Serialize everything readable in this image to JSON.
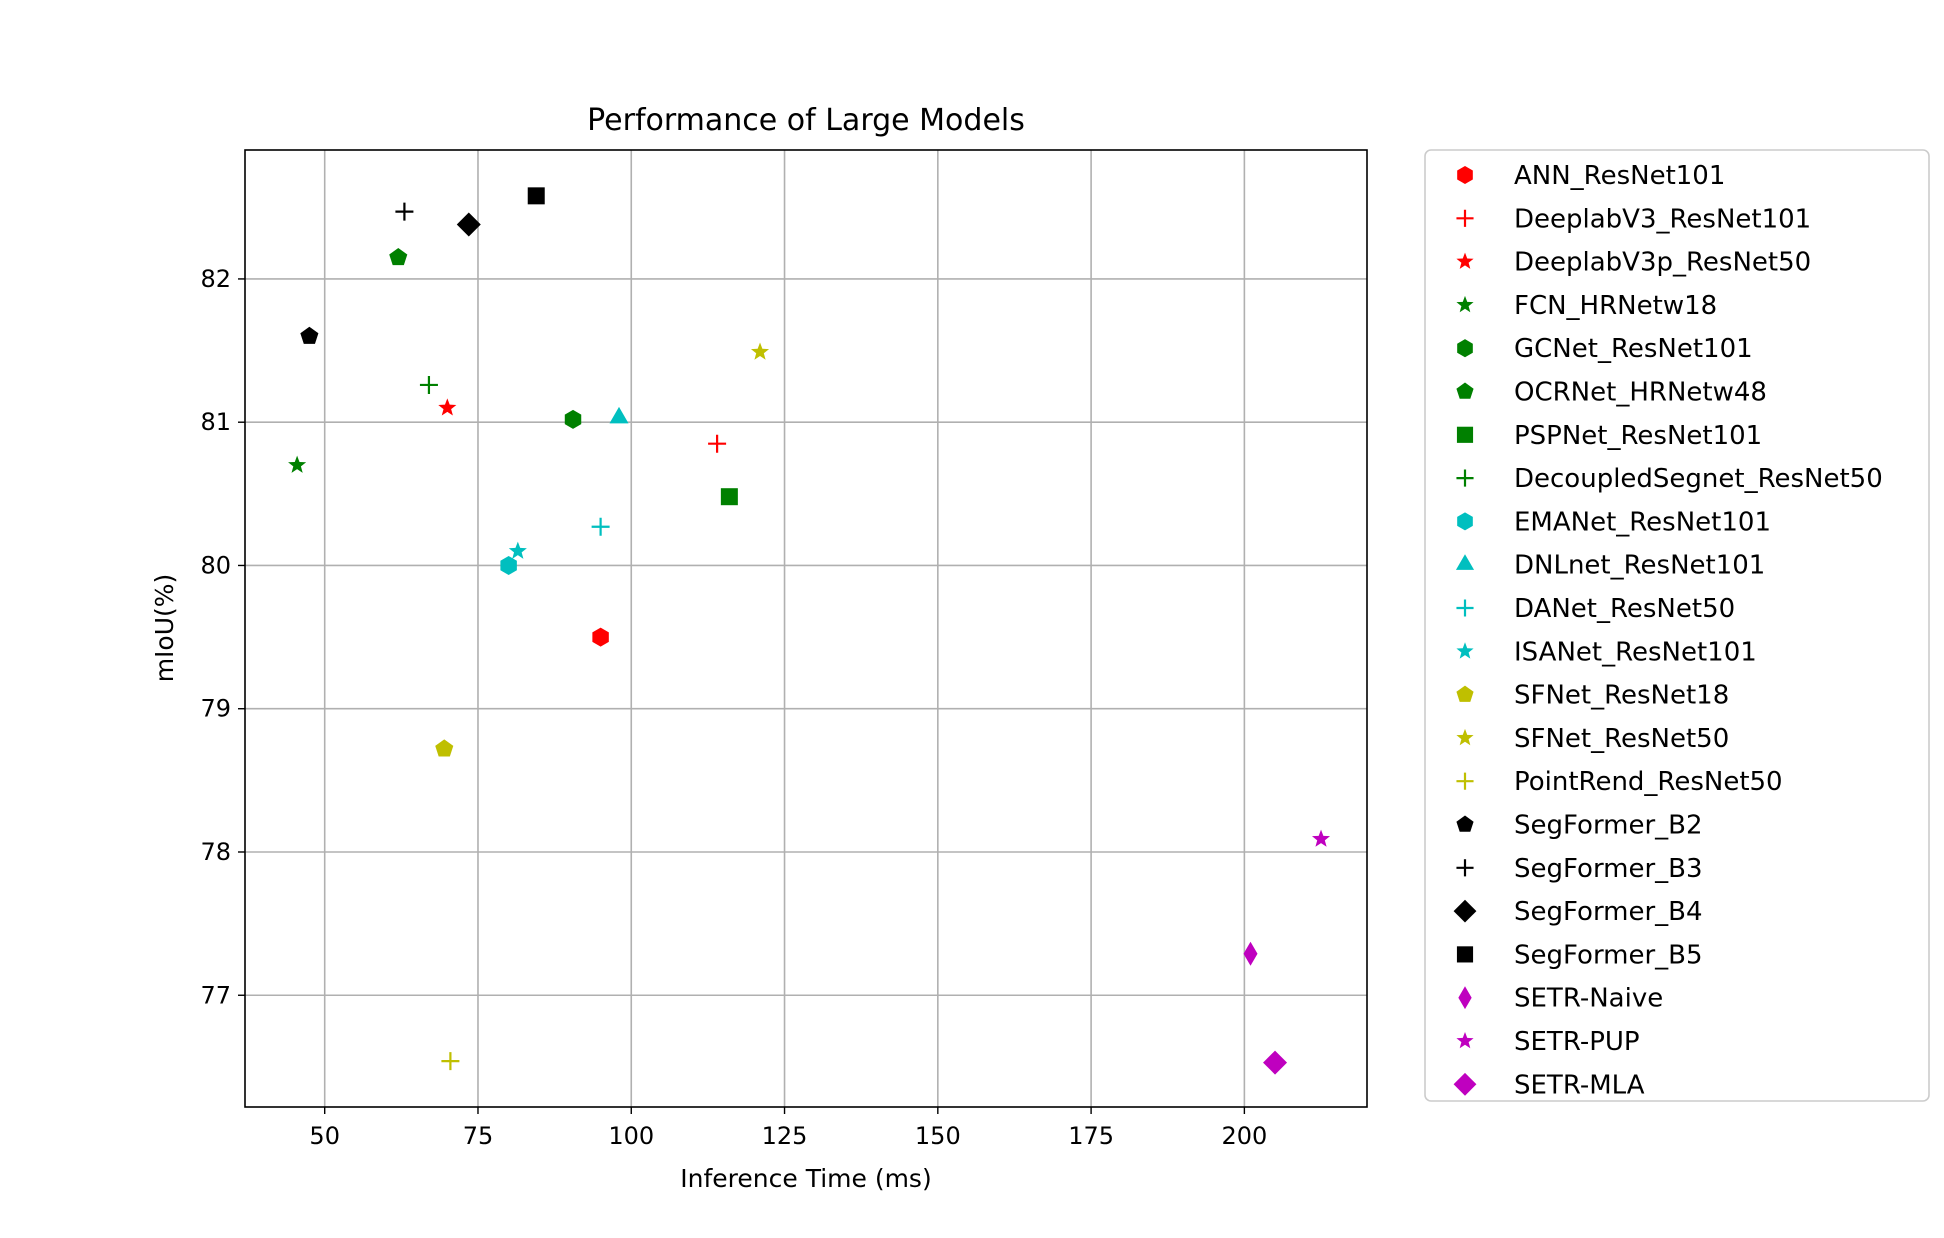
{
  "chart_data": {
    "type": "scatter",
    "title": "Performance of Large Models",
    "xlabel": "Inference Time (ms)",
    "ylabel": "mIoU(%)",
    "xlim": [
      37,
      220
    ],
    "ylim": [
      76.22,
      82.9
    ],
    "xticks": [
      50,
      75,
      100,
      125,
      150,
      175,
      200
    ],
    "yticks": [
      77,
      78,
      79,
      80,
      81,
      82
    ],
    "grid": true,
    "legend_position": "outside-right",
    "series": [
      {
        "name": "ANN_ResNet101",
        "marker": "hexagon",
        "color": "#ff0000",
        "x": 95,
        "y": 79.5
      },
      {
        "name": "DeeplabV3_ResNet101",
        "marker": "plus",
        "color": "#ff0000",
        "x": 114,
        "y": 80.85
      },
      {
        "name": "DeeplabV3p_ResNet50",
        "marker": "star",
        "color": "#ff0000",
        "x": 70,
        "y": 81.1
      },
      {
        "name": "FCN_HRNetw18",
        "marker": "star",
        "color": "#008000",
        "x": 45.5,
        "y": 80.7
      },
      {
        "name": "GCNet_ResNet101",
        "marker": "hexagon",
        "color": "#008000",
        "x": 90.5,
        "y": 81.02
      },
      {
        "name": "OCRNet_HRNetw48",
        "marker": "pentagon",
        "color": "#008000",
        "x": 62,
        "y": 82.15
      },
      {
        "name": "PSPNet_ResNet101",
        "marker": "square",
        "color": "#008000",
        "x": 116,
        "y": 80.48
      },
      {
        "name": "DecoupledSegnet_ResNet50",
        "marker": "plus",
        "color": "#008000",
        "x": 67,
        "y": 81.26
      },
      {
        "name": "EMANet_ResNet101",
        "marker": "hexagon",
        "color": "#00bfbf",
        "x": 80,
        "y": 80.0
      },
      {
        "name": "DNLnet_ResNet101",
        "marker": "triangle",
        "color": "#00bfbf",
        "x": 98,
        "y": 81.03
      },
      {
        "name": "DANet_ResNet50",
        "marker": "plus",
        "color": "#00bfbf",
        "x": 95,
        "y": 80.27
      },
      {
        "name": "ISANet_ResNet101",
        "marker": "star",
        "color": "#00bfbf",
        "x": 81.5,
        "y": 80.1
      },
      {
        "name": "SFNet_ResNet18",
        "marker": "pentagon",
        "color": "#bfbf00",
        "x": 69.5,
        "y": 78.72
      },
      {
        "name": "SFNet_ResNet50",
        "marker": "star",
        "color": "#bfbf00",
        "x": 121,
        "y": 81.49
      },
      {
        "name": "PointRend_ResNet50",
        "marker": "plus",
        "color": "#bfbf00",
        "x": 70.5,
        "y": 76.54
      },
      {
        "name": "SegFormer_B2",
        "marker": "pentagon",
        "color": "#000000",
        "x": 47.5,
        "y": 81.6
      },
      {
        "name": "SegFormer_B3",
        "marker": "plus",
        "color": "#000000",
        "x": 63,
        "y": 82.47
      },
      {
        "name": "SegFormer_B4",
        "marker": "diamond",
        "color": "#000000",
        "x": 73.5,
        "y": 82.38
      },
      {
        "name": "SegFormer_B5",
        "marker": "square",
        "color": "#000000",
        "x": 84.5,
        "y": 82.58
      },
      {
        "name": "SETR-Naive",
        "marker": "thin_diamond",
        "color": "#bf00bf",
        "x": 201,
        "y": 77.29
      },
      {
        "name": "SETR-PUP",
        "marker": "star",
        "color": "#bf00bf",
        "x": 212.5,
        "y": 78.09
      },
      {
        "name": "SETR-MLA",
        "marker": "diamond",
        "color": "#bf00bf",
        "x": 205,
        "y": 76.53
      }
    ]
  }
}
